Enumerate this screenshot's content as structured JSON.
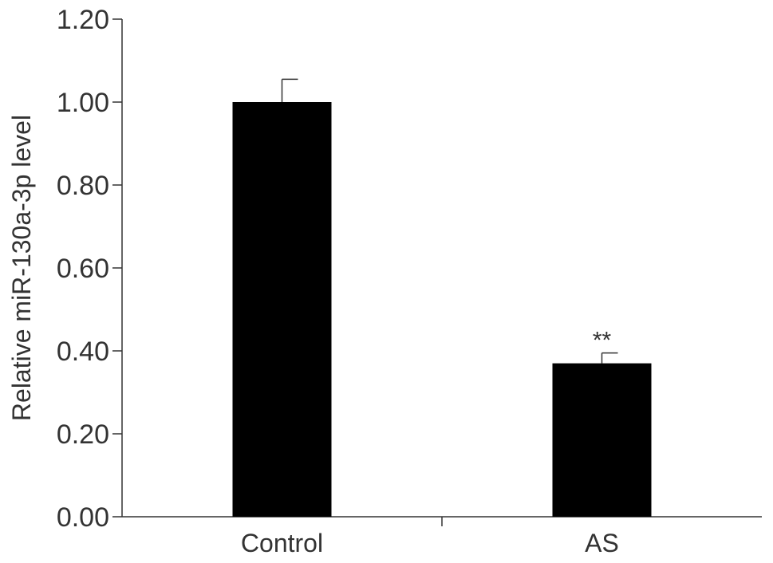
{
  "chart_data": {
    "type": "bar",
    "title": "",
    "xlabel": "",
    "ylabel": "Relative miR-130a-3p level",
    "categories": [
      "Control",
      "AS"
    ],
    "values": [
      1.0,
      0.37
    ],
    "errors": [
      0.055,
      0.025
    ],
    "annotations": [
      "",
      "**"
    ],
    "ylim": [
      0,
      1.2
    ],
    "yticks": [
      0.0,
      0.2,
      0.4,
      0.6,
      0.8,
      1.0,
      1.2
    ],
    "ytick_labels": [
      "0.00",
      "0.20",
      "0.40",
      "0.60",
      "0.80",
      "1.00",
      "1.20"
    ],
    "bar_color": "#000000",
    "axis_color": "#333333",
    "grid": false,
    "legend": false
  }
}
